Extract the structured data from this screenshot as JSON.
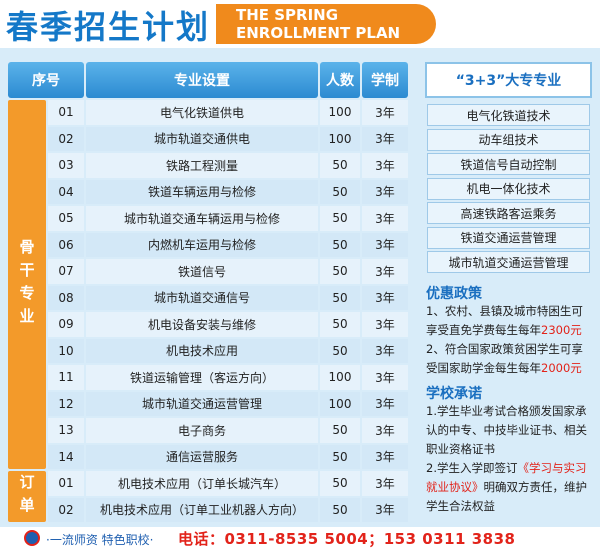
{
  "header": {
    "title": "春季招生计划",
    "subtitle_line1": "THE SPRING",
    "subtitle_line2": "ENROLLMENT PLAN"
  },
  "table": {
    "columns": [
      "序号",
      "专业设置",
      "人数",
      "学制"
    ],
    "groups": [
      {
        "label": "骨干专业",
        "rows": [
          [
            "01",
            "电气化铁道供电",
            100,
            "3年"
          ],
          [
            "02",
            "城市轨道交通供电",
            100,
            "3年"
          ],
          [
            "03",
            "铁路工程测量",
            50,
            "3年"
          ],
          [
            "04",
            "铁道车辆运用与检修",
            50,
            "3年"
          ],
          [
            "05",
            "城市轨道交通车辆运用与检修",
            50,
            "3年"
          ],
          [
            "06",
            "内燃机车运用与检修",
            50,
            "3年"
          ],
          [
            "07",
            "铁道信号",
            50,
            "3年"
          ],
          [
            "08",
            "城市轨道交通信号",
            50,
            "3年"
          ],
          [
            "09",
            "机电设备安装与维修",
            50,
            "3年"
          ],
          [
            "10",
            "机电技术应用",
            50,
            "3年"
          ],
          [
            "11",
            "铁道运输管理（客运方向）",
            100,
            "3年"
          ],
          [
            "12",
            "城市轨道交通运营管理",
            100,
            "3年"
          ],
          [
            "13",
            "电子商务",
            50,
            "3年"
          ],
          [
            "14",
            "通信运营服务",
            50,
            "3年"
          ]
        ]
      },
      {
        "label": "订单",
        "rows": [
          [
            "01",
            "机电技术应用（订单长城汽车）",
            50,
            "3年"
          ],
          [
            "02",
            "机电技术应用（订单工业机器人方向）",
            50,
            "3年"
          ]
        ]
      }
    ]
  },
  "college": {
    "title": "“3+3”大专专业",
    "items": [
      "电气化铁道技术",
      "动车组技术",
      "铁道信号自动控制",
      "机电一体化技术",
      "高速铁路客运乘务",
      "铁道交通运营管理",
      "城市轨道交通运营管理"
    ]
  },
  "policy": {
    "title": "优惠政策",
    "items": [
      [
        {
          "text": "1、农村、县镇及城市特困生可享受直免学费每生每年"
        },
        {
          "text": "2300元",
          "highlight": true
        }
      ],
      [
        {
          "text": "2、符合国家政策贫困学生可享受国家助学金每生每年"
        },
        {
          "text": "2000元",
          "highlight": true
        }
      ]
    ]
  },
  "promise": {
    "title": "学校承诺",
    "items": [
      [
        {
          "text": "1.学生毕业考试合格颁发国家承认的中专、中技毕业证书、相关职业资格证书"
        }
      ],
      [
        {
          "text": "2.学生入学即签订"
        },
        {
          "text": "《学习与实习就业协议》",
          "highlight": true
        },
        {
          "text": "明确双方责任，维护学生合法权益"
        }
      ]
    ]
  },
  "footer": {
    "slogan": "·一流师资  特色职校·",
    "phone": "电话：0311-8535 5004；153 0311 3838"
  }
}
